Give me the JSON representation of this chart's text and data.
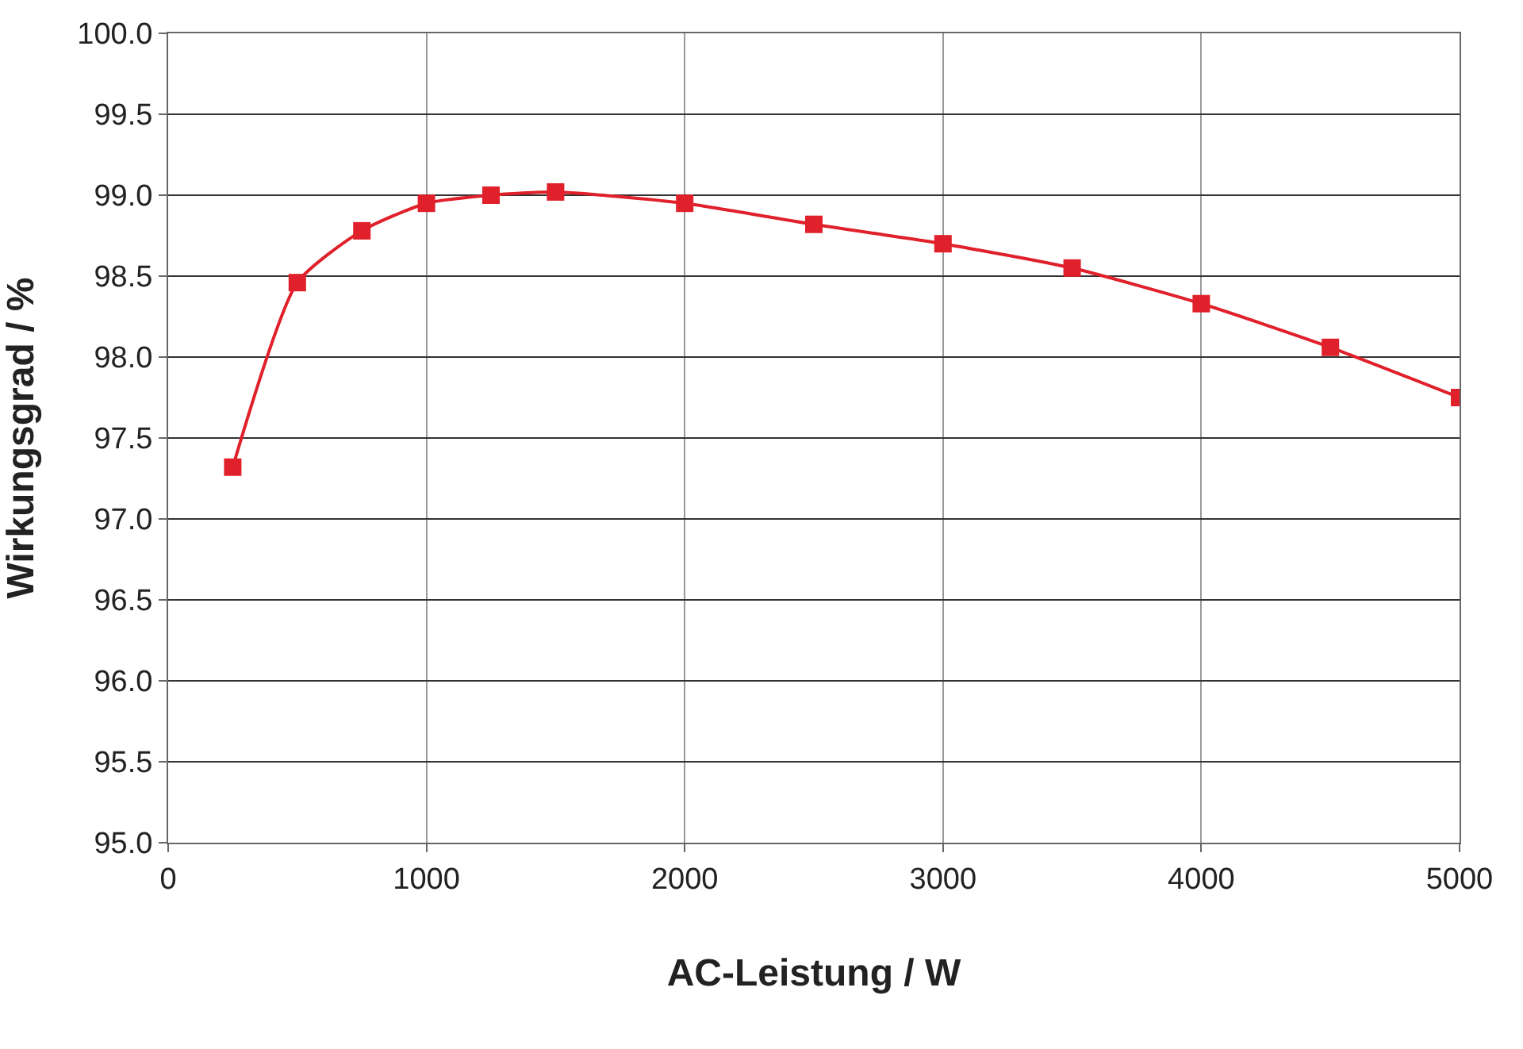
{
  "chart_data": {
    "type": "line",
    "xlabel": "AC-Leistung / W",
    "ylabel": "Wirkungsgrad / %",
    "x": [
      250,
      500,
      750,
      1000,
      1250,
      1500,
      2000,
      2500,
      3000,
      3500,
      4000,
      4500,
      5000
    ],
    "series": [
      {
        "color": "#e0202a",
        "values": [
          97.32,
          98.46,
          98.78,
          98.95,
          99.0,
          99.02,
          98.95,
          98.82,
          98.7,
          98.55,
          98.33,
          98.06,
          97.75
        ]
      }
    ],
    "xlim": [
      0,
      5000
    ],
    "xticks": [
      0,
      1000,
      2000,
      3000,
      4000,
      5000
    ],
    "ylim": [
      95,
      100
    ],
    "yticks": [
      {
        "value": 95,
        "label": "95.0"
      },
      {
        "value": 95.5,
        "label": "95.5"
      },
      {
        "value": 96,
        "label": "96.0"
      },
      {
        "value": 96.5,
        "label": "96.5"
      },
      {
        "value": 97,
        "label": "97.0"
      },
      {
        "value": 97.5,
        "label": "97.5"
      },
      {
        "value": 98,
        "label": "98.0"
      },
      {
        "value": 98.5,
        "label": "98.5"
      },
      {
        "value": 99,
        "label": "99.0"
      },
      {
        "value": 99.5,
        "label": "99.5"
      },
      {
        "value": 100,
        "label": "100.0"
      }
    ],
    "grid": true,
    "marker": "square",
    "line_style": "solid",
    "legend": false
  }
}
